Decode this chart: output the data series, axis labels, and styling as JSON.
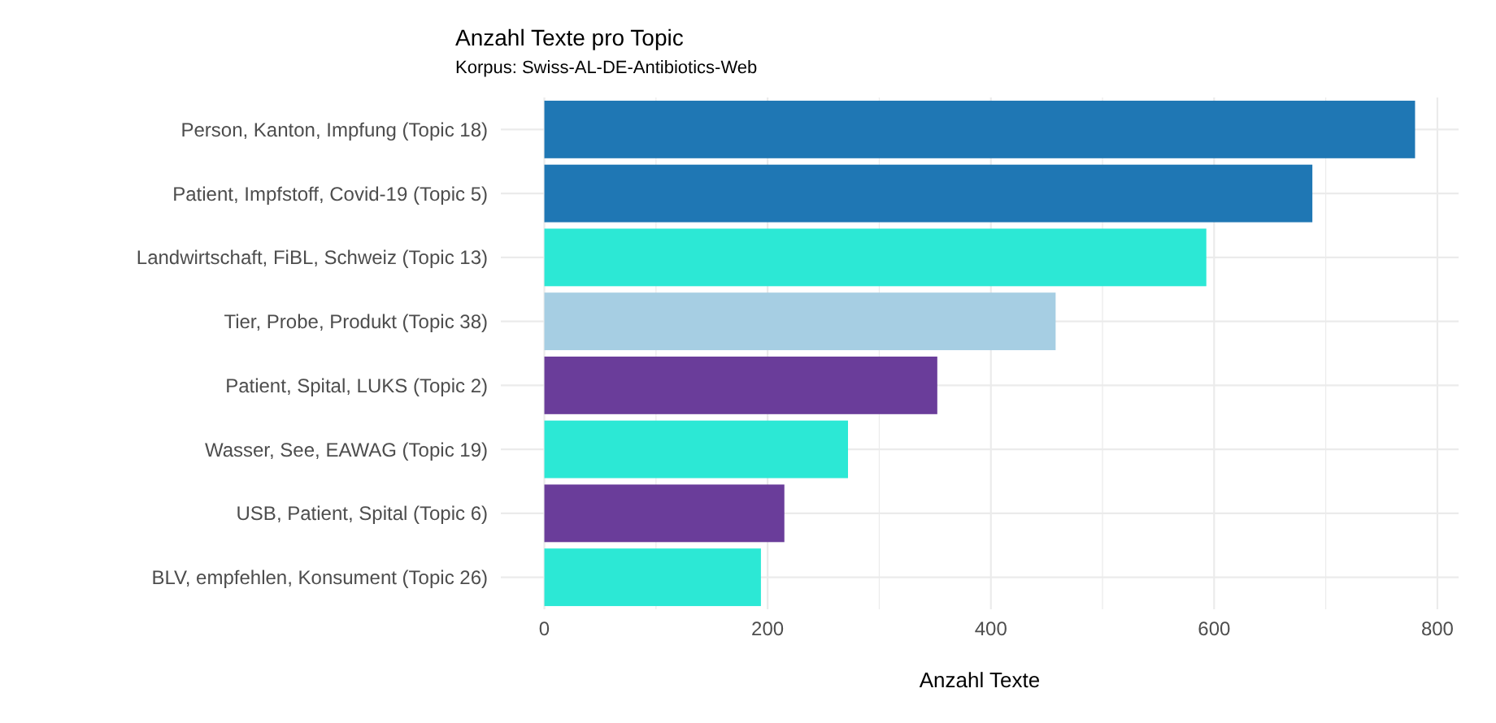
{
  "chart_data": {
    "type": "bar",
    "orientation": "horizontal",
    "title": "Anzahl Texte pro Topic",
    "subtitle": "Korpus: Swiss-AL-DE-Antibiotics-Web",
    "xlabel": "Anzahl Texte",
    "categories": [
      "Person, Kanton, Impfung (Topic 18)",
      "Patient, Impfstoff, Covid-19 (Topic 5)",
      "Landwirtschaft, FiBL, Schweiz (Topic 13)",
      "Tier, Probe, Produkt (Topic 38)",
      "Patient, Spital, LUKS (Topic 2)",
      "Wasser, See, EAWAG (Topic 19)",
      "USB, Patient, Spital (Topic 6)",
      "BLV, empfehlen, Konsument (Topic 26)"
    ],
    "values": [
      780,
      688,
      593,
      458,
      352,
      272,
      215,
      194
    ],
    "colors": [
      "#1f77b4",
      "#1f77b4",
      "#2ce8d5",
      "#a6cee3",
      "#6a3d9a",
      "#2ce8d5",
      "#6a3d9a",
      "#2ce8d5"
    ],
    "xlim": [
      -39,
      819
    ],
    "xticks": [
      0,
      {
        "value": 100,
        "label": null
      },
      200,
      {
        "value": 300,
        "label": null
      },
      400,
      {
        "value": 500,
        "label": null
      },
      600,
      {
        "value": 700,
        "label": null
      },
      800
    ],
    "grid": true
  }
}
